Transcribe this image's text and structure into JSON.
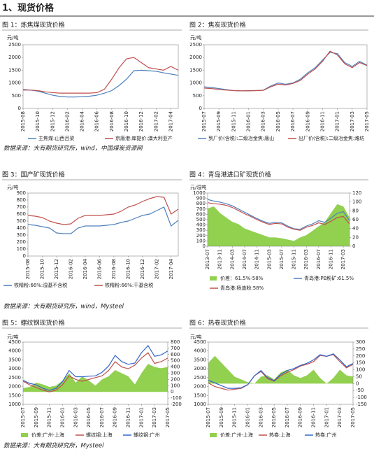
{
  "page_title": "1、现货价格",
  "sources": [
    "数据来源：大有期货研究所，wind，中国煤炭资源网",
    "数据来源：大有期货研究所，wind，Mysteel",
    "数据来源：大有期货研究所，Mysteel"
  ],
  "chart_data": [
    {
      "type": "line",
      "title": "图 1：炼焦煤现货价格",
      "ylabel": "元/吨",
      "ylim": [
        0,
        2500
      ],
      "yticks": [
        0,
        500,
        1000,
        1500,
        2000,
        2500
      ],
      "categories": [
        "2015-08",
        null,
        "2015-10",
        null,
        "2015-12",
        null,
        "2016-02",
        null,
        "2016-04",
        null,
        "2016-06",
        null,
        "2016-08",
        null,
        "2016-10",
        null,
        "2016-12",
        null,
        "2017-02",
        null,
        "2017-04",
        null
      ],
      "series": [
        {
          "name": "主焦煤:山西吕梁",
          "color": "#4f81bd",
          "values": [
            750,
            720,
            680,
            600,
            520,
            470,
            450,
            450,
            460,
            480,
            520,
            600,
            700,
            900,
            1150,
            1480,
            1500,
            1480,
            1460,
            1400,
            1350,
            1300
          ]
        },
        {
          "name": "京唐港:库提价:澳大利亚产",
          "color": "#c0504d",
          "values": [
            720,
            720,
            700,
            650,
            620,
            600,
            600,
            600,
            600,
            600,
            620,
            750,
            1150,
            1600,
            1950,
            2000,
            1800,
            1600,
            1550,
            1500,
            1650,
            1500
          ]
        }
      ]
    },
    {
      "type": "line",
      "title": "图 2：焦炭现货价格",
      "ylabel": "元/吨",
      "ylim": [
        0,
        2500
      ],
      "yticks": [
        0,
        500,
        1000,
        1500,
        2000,
        2500
      ],
      "categories": [
        "2015-07",
        null,
        "2015-09",
        null,
        "2015-11",
        null,
        "2016-01",
        null,
        "2016-03",
        null,
        "2016-05",
        null,
        "2016-07",
        null,
        "2016-09",
        null,
        "2016-11",
        null,
        "2017-01",
        null,
        "2017-03",
        null,
        "2017-05"
      ],
      "series": [
        {
          "name": "到厂价(含税):二级冶金焦:唐山",
          "color": "#4f81bd",
          "values": [
            850,
            820,
            780,
            740,
            700,
            690,
            700,
            700,
            720,
            880,
            1000,
            950,
            1000,
            1150,
            1400,
            1600,
            1900,
            2200,
            2150,
            1800,
            1650,
            1850,
            1700
          ]
        },
        {
          "name": "出厂价(含税):二级冶金焦:潍坊",
          "color": "#c0504d",
          "values": [
            800,
            780,
            740,
            720,
            700,
            690,
            690,
            700,
            710,
            850,
            950,
            920,
            980,
            1100,
            1350,
            1550,
            1850,
            2250,
            2100,
            1750,
            1600,
            1800,
            1680
          ]
        }
      ]
    },
    {
      "type": "line",
      "title": "图 3：国产矿现货价格",
      "ylabel": "元/吨",
      "ylim": [
        0,
        900
      ],
      "yticks": [
        0,
        100,
        200,
        300,
        400,
        500,
        600,
        700,
        800,
        900
      ],
      "categories": [
        "2015-08",
        null,
        "2015-10",
        null,
        "2015-12",
        null,
        "2016-02",
        null,
        "2016-04",
        null,
        "2016-06",
        null,
        "2016-08",
        null,
        "2016-10",
        null,
        "2016-12",
        null,
        "2017-02",
        null,
        "2017-04",
        null
      ],
      "series": [
        {
          "name": "铁精粉:66%:湿基不含税",
          "color": "#4f81bd",
          "values": [
            450,
            440,
            420,
            400,
            330,
            320,
            320,
            400,
            430,
            430,
            430,
            440,
            450,
            480,
            500,
            540,
            580,
            600,
            650,
            700,
            430,
            510
          ]
        },
        {
          "name": "铁精粉:66%:干基含税",
          "color": "#c0504d",
          "values": [
            580,
            570,
            550,
            500,
            470,
            450,
            460,
            540,
            580,
            580,
            580,
            590,
            600,
            640,
            700,
            730,
            780,
            820,
            850,
            840,
            600,
            670
          ]
        }
      ]
    },
    {
      "type": "line",
      "title": "图 4：青岛港进口矿现货价格",
      "ylabel": "元/湿吨",
      "ylim": [
        0,
        1000
      ],
      "yticks": [
        0,
        100,
        200,
        300,
        400,
        500,
        600,
        700,
        800,
        900,
        1000
      ],
      "y2lim": [
        0,
        120
      ],
      "y2ticks": [
        0,
        20,
        40,
        60,
        80,
        100,
        120
      ],
      "categories": [
        "2013-07",
        null,
        "2013-11",
        null,
        "2014-03",
        null,
        "2014-07",
        null,
        "2014-11",
        null,
        "2015-03",
        null,
        "2015-07",
        null,
        "2015-11",
        null,
        "2016-03",
        null,
        "2016-07",
        null,
        "2016-11",
        null,
        "2017-03",
        null
      ],
      "series": [
        {
          "name": "价差：61.5%-58%",
          "color": "#92d050",
          "style": "area",
          "axis": "y2",
          "values": [
            85,
            90,
            75,
            65,
            55,
            50,
            40,
            35,
            30,
            25,
            20,
            20,
            18,
            15,
            12,
            20,
            25,
            35,
            45,
            55,
            75,
            95,
            90,
            65
          ]
        },
        {
          "name": "青岛港:PB粉矿:61.5%",
          "color": "#4f81bd",
          "values": [
            880,
            850,
            830,
            800,
            760,
            700,
            640,
            580,
            520,
            470,
            430,
            450,
            440,
            380,
            330,
            320,
            380,
            420,
            480,
            450,
            530,
            620,
            650,
            480
          ]
        },
        {
          "name": "青岛港:杨迪粉:58%",
          "color": "#c0504d",
          "values": [
            820,
            800,
            790,
            770,
            730,
            670,
            610,
            560,
            500,
            450,
            410,
            430,
            420,
            360,
            320,
            300,
            360,
            390,
            440,
            410,
            470,
            540,
            560,
            420
          ]
        }
      ]
    },
    {
      "type": "line",
      "title": "图 5：螺纹钢现货价格",
      "ylabel": "元/吨",
      "ylim": [
        1000,
        4500
      ],
      "yticks": [
        1000,
        1500,
        2000,
        2500,
        3000,
        3500,
        4000,
        4500
      ],
      "y2lim": [
        -200,
        800
      ],
      "y2ticks": [
        -200,
        -100,
        0,
        100,
        200,
        300,
        400,
        500,
        600,
        700,
        800
      ],
      "categories": [
        "2015-07",
        null,
        "2015-09",
        null,
        "2015-11",
        null,
        "2016-01",
        null,
        "2016-03",
        null,
        "2016-05",
        null,
        "2016-07",
        null,
        "2016-09",
        null,
        "2016-11",
        null,
        "2017-01",
        null,
        "2017-03",
        null,
        "2017-05"
      ],
      "series": [
        {
          "name": "价差:广州-上海",
          "color": "#92d050",
          "style": "area",
          "axis": "y2",
          "values": [
            60,
            80,
            150,
            120,
            80,
            100,
            180,
            300,
            150,
            250,
            180,
            100,
            200,
            250,
            350,
            300,
            250,
            120,
            300,
            450,
            400,
            380,
            400
          ]
        },
        {
          "name": "螺纹钢:上海",
          "color": "#c0504d",
          "values": [
            2300,
            2100,
            1950,
            1800,
            1700,
            1800,
            2100,
            2600,
            2400,
            2300,
            2400,
            2500,
            2600,
            2900,
            3400,
            3100,
            3000,
            3200,
            3600,
            3900,
            3300,
            3400,
            3600
          ]
        },
        {
          "name": "螺纹钢:广州",
          "color": "#3366cc",
          "values": [
            2350,
            2180,
            2100,
            1900,
            1780,
            1900,
            2280,
            2900,
            2550,
            2550,
            2580,
            2600,
            2800,
            3150,
            3750,
            3400,
            3250,
            3320,
            3900,
            4300,
            3700,
            3780,
            4000
          ]
        }
      ]
    },
    {
      "type": "line",
      "title": "图 6：热卷现货价格",
      "ylabel": "元/吨",
      "ylim": [
        1000,
        4500
      ],
      "yticks": [
        1000,
        1500,
        2000,
        2500,
        3000,
        3500,
        4000,
        4500
      ],
      "y2lim": [
        -150,
        300
      ],
      "y2ticks": [
        -150,
        -100,
        -50,
        0,
        50,
        100,
        150,
        200,
        250,
        300
      ],
      "categories": [
        "2015-07",
        null,
        "2015-09",
        null,
        "2015-11",
        null,
        "2016-01",
        null,
        "2016-03",
        null,
        "2016-05",
        null,
        "2016-07",
        null,
        "2016-09",
        null,
        "2016-11",
        null,
        "2017-01",
        null,
        "2017-03",
        null,
        "2017-05"
      ],
      "series": [
        {
          "name": "价差:广州-上海",
          "color": "#92d050",
          "style": "area",
          "axis": "y2",
          "values": [
            150,
            200,
            150,
            100,
            50,
            30,
            10,
            0,
            50,
            60,
            30,
            80,
            100,
            60,
            40,
            60,
            100,
            40,
            0,
            40,
            100,
            60,
            50
          ]
        },
        {
          "name": "热卷:上海",
          "color": "#c0504d",
          "values": [
            2200,
            2000,
            1900,
            1800,
            1850,
            1900,
            2100,
            2600,
            2850,
            2450,
            2300,
            2600,
            2800,
            2950,
            3150,
            3250,
            3400,
            3750,
            3700,
            3800,
            3400,
            3050,
            3250
          ]
        },
        {
          "name": "热卷:广州",
          "color": "#3366cc",
          "values": [
            2350,
            2200,
            2050,
            1900,
            1900,
            1930,
            2110,
            2600,
            2900,
            2510,
            2330,
            2680,
            2900,
            3010,
            3190,
            3310,
            3500,
            3790,
            3700,
            3840,
            3500,
            3110,
            3300
          ]
        }
      ]
    }
  ]
}
